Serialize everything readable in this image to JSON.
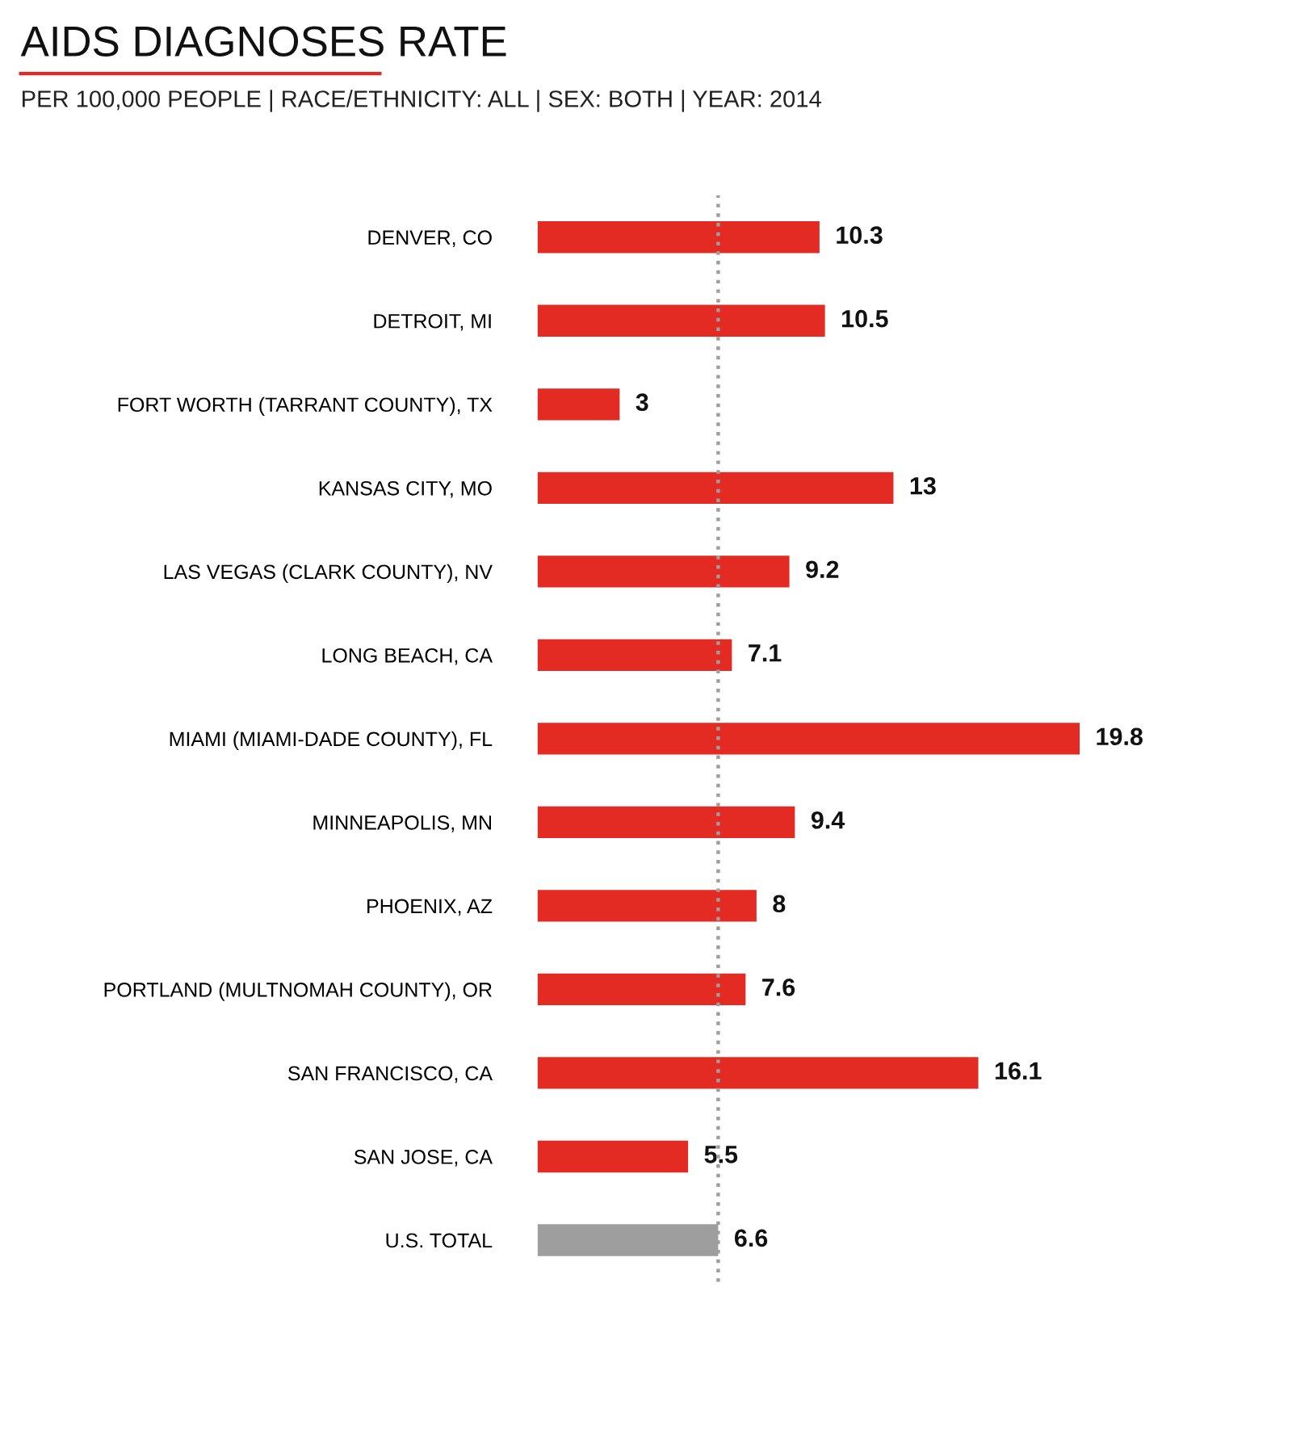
{
  "chart_data": {
    "type": "bar",
    "orientation": "horizontal",
    "title": "AIDS DIAGNOSES RATE",
    "subtitle": "PER 100,000 PEOPLE | RACE/ETHNICITY: ALL | SEX: BOTH | YEAR: 2014",
    "categories": [
      "DENVER, CO",
      "DETROIT, MI",
      "FORT WORTH (TARRANT COUNTY), TX",
      "KANSAS CITY, MO",
      "LAS VEGAS (CLARK COUNTY), NV",
      "LONG BEACH, CA",
      "MIAMI (MIAMI-DADE COUNTY), FL",
      "MINNEAPOLIS, MN",
      "PHOENIX, AZ",
      "PORTLAND (MULTNOMAH COUNTY), OR",
      "SAN FRANCISCO, CA",
      "SAN JOSE, CA",
      "U.S. TOTAL"
    ],
    "values": [
      10.3,
      10.5,
      3,
      13,
      9.2,
      7.1,
      19.8,
      9.4,
      8,
      7.6,
      16.1,
      5.5,
      6.6
    ],
    "colors": [
      "#e32b24",
      "#e32b24",
      "#e32b24",
      "#e32b24",
      "#e32b24",
      "#e32b24",
      "#e32b24",
      "#e32b24",
      "#e32b24",
      "#e32b24",
      "#e32b24",
      "#e32b24",
      "#9e9e9e"
    ],
    "data_labels": true,
    "ref_lines": [
      {
        "axis": "x",
        "value": 6.6,
        "color": "#9e9e9e",
        "line_style": "dotted"
      }
    ],
    "grid": false,
    "legend": false
  }
}
